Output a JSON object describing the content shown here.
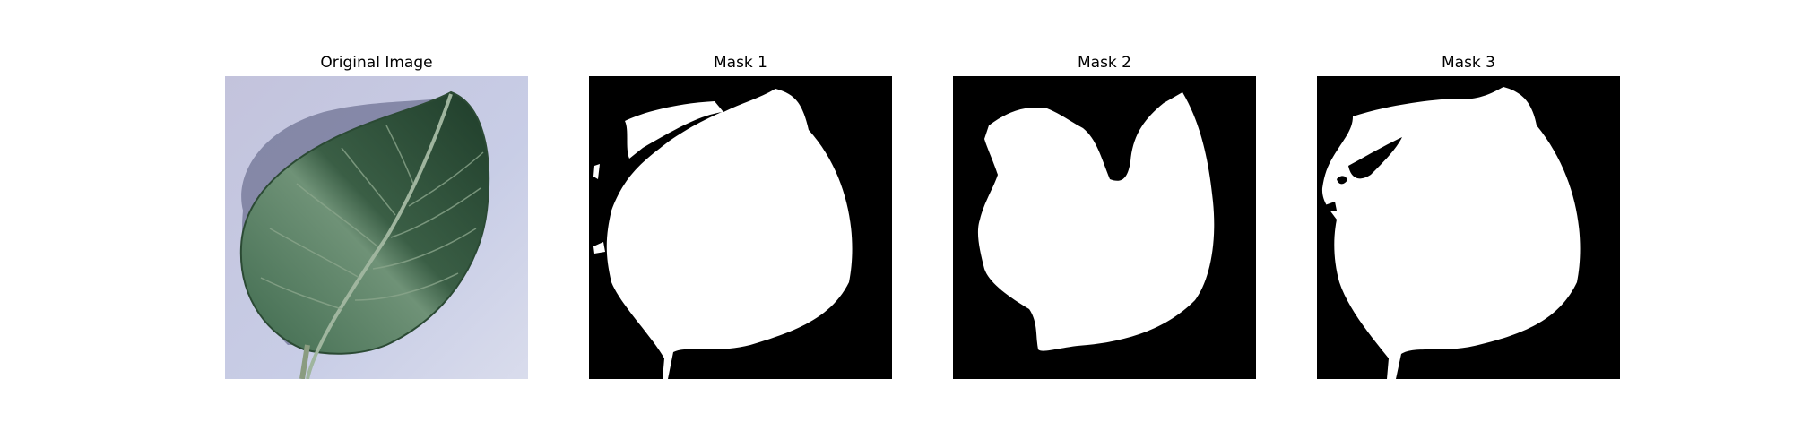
{
  "figure": {
    "panels": [
      {
        "title": "Original Image",
        "kind": "photo",
        "subject": "leaf"
      },
      {
        "title": "Mask 1",
        "kind": "binary-mask"
      },
      {
        "title": "Mask 2",
        "kind": "binary-mask"
      },
      {
        "title": "Mask 3",
        "kind": "binary-mask"
      }
    ],
    "colors": {
      "mask_foreground": "#ffffff",
      "mask_background": "#000000",
      "photo_background": "#c9cde4",
      "leaf_dark": "#2a4a36",
      "leaf_light": "#6f8f74",
      "shadow": "#6f7394"
    }
  }
}
